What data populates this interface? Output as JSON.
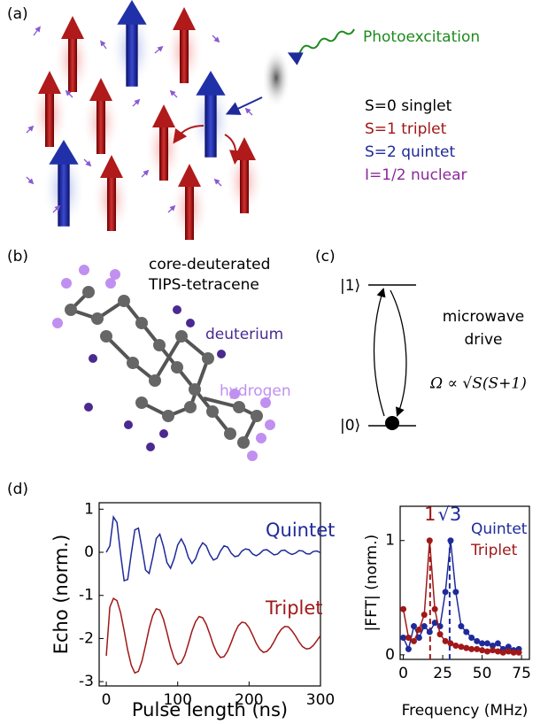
{
  "panels": {
    "a": {
      "label": "(a)",
      "photo": "Photoexcitation",
      "legend": [
        "S=0 singlet",
        "S=1 triplet",
        "S=2 quintet",
        "I=1/2 nuclear"
      ]
    },
    "b": {
      "label": "(b)",
      "title": [
        "core-deuterated",
        "TIPS-tetracene"
      ],
      "deuterium": "deuterium",
      "hydrogen": "hydrogen"
    },
    "c": {
      "label": "(c)",
      "upper": "|1⟩",
      "lower": "|0⟩",
      "drive": [
        "microwave",
        "drive"
      ],
      "formula": "Ω ∝ √S(S+1)"
    },
    "d": {
      "label": "(d)"
    }
  },
  "chart_data": [
    {
      "type": "line",
      "x_label": "Pulse length (ns)",
      "y_label": "Echo (norm.)",
      "x": [
        0,
        5,
        10,
        15,
        20,
        25,
        30,
        35,
        40,
        45,
        50,
        55,
        60,
        65,
        70,
        75,
        80,
        85,
        90,
        95,
        100,
        105,
        110,
        115,
        120,
        125,
        130,
        135,
        140,
        145,
        150,
        155,
        160,
        165,
        170,
        175,
        180,
        185,
        190,
        195,
        200,
        205,
        210,
        215,
        220,
        225,
        230,
        235,
        240,
        245,
        250,
        255,
        260,
        265,
        270,
        275,
        280,
        285,
        290,
        295,
        300
      ],
      "series": [
        {
          "name": "Quintet",
          "color": "#1f2a9a",
          "values": [
            0,
            0.15,
            0.82,
            0.69,
            -0.04,
            -0.66,
            -0.63,
            -0.03,
            0.52,
            0.56,
            0.09,
            -0.41,
            -0.49,
            -0.12,
            0.32,
            0.42,
            0.14,
            -0.24,
            -0.37,
            -0.15,
            0.17,
            0.31,
            0.15,
            -0.12,
            -0.26,
            -0.15,
            0.08,
            0.22,
            0.15,
            -0.05,
            -0.18,
            -0.14,
            0.03,
            0.15,
            0.12,
            -0.02,
            -0.1,
            -0.08,
            0.03,
            0.08,
            0.06,
            -0.04,
            -0.08,
            -0.03,
            0.05,
            0.06,
            0,
            -0.06,
            -0.04,
            0.04,
            0.05,
            -0.01,
            -0.05,
            -0.02,
            0.04,
            0.03,
            -0.03,
            -0.04,
            0.02,
            0.03,
            -0.01
          ]
        },
        {
          "name": "Triplet",
          "color": "#a01818",
          "values": [
            -2.4,
            -1.27,
            -1.07,
            -1.12,
            -1.4,
            -1.82,
            -2.27,
            -2.62,
            -2.8,
            -2.76,
            -2.52,
            -2.16,
            -1.77,
            -1.47,
            -1.31,
            -1.34,
            -1.55,
            -1.86,
            -2.2,
            -2.46,
            -2.6,
            -2.56,
            -2.39,
            -2.12,
            -1.83,
            -1.61,
            -1.49,
            -1.52,
            -1.67,
            -1.9,
            -2.15,
            -2.34,
            -2.44,
            -2.42,
            -2.29,
            -2.09,
            -1.87,
            -1.7,
            -1.62,
            -1.64,
            -1.75,
            -1.92,
            -2.11,
            -2.25,
            -2.32,
            -2.3,
            -2.21,
            -2.07,
            -1.91,
            -1.79,
            -1.72,
            -1.73,
            -1.82,
            -1.94,
            -2.08,
            -2.19,
            -2.24,
            -2.23,
            -2.16,
            -2.05,
            -1.93
          ]
        }
      ],
      "xlim": [
        -10,
        300
      ],
      "xticks": [
        0,
        100,
        200,
        300
      ],
      "ylim": [
        -3.1,
        1.15
      ],
      "yticks": [
        -3,
        -2,
        -1,
        0,
        1
      ]
    },
    {
      "type": "line",
      "markers": true,
      "x_label": "Frequency (MHz)",
      "y_label": "|FFT| (norm.)",
      "x": [
        0,
        3.3,
        6.7,
        10,
        13.3,
        16.7,
        20,
        23.3,
        26.7,
        30,
        33.3,
        36.7,
        40,
        43.3,
        46.7,
        50,
        53.3,
        56.7,
        60,
        63.3,
        66.7,
        70,
        73.3
      ],
      "series": [
        {
          "name": "Quintet",
          "color": "#1f2a9a",
          "values": [
            0.15,
            0.05,
            0.25,
            0.15,
            0.25,
            0.2,
            0.28,
            0.25,
            0.55,
            1.0,
            0.55,
            0.25,
            0.2,
            0.15,
            0.12,
            0.1,
            0.1,
            0.08,
            0.1,
            0.05,
            0.07,
            0.04,
            0.05
          ]
        },
        {
          "name": "Triplet",
          "color": "#a01818",
          "values": [
            0.4,
            0.15,
            0.12,
            0.22,
            0.35,
            1.0,
            0.4,
            0.18,
            0.12,
            0.1,
            0.08,
            0.07,
            0.06,
            0.05,
            0.05,
            0.04,
            0.03,
            0.04,
            0.03,
            0.02,
            0.03,
            0.02,
            0.02
          ]
        }
      ],
      "vlines": [
        {
          "x": 17,
          "color": "#a01818",
          "label": "1"
        },
        {
          "x": 29.4,
          "color": "#1f2a9a",
          "label": "√3"
        }
      ],
      "xlim": [
        -2,
        80
      ],
      "xticks": [
        0,
        25,
        50,
        75
      ],
      "ylim": [
        -0.04,
        1.3
      ],
      "yticks": [
        0,
        1
      ]
    }
  ]
}
